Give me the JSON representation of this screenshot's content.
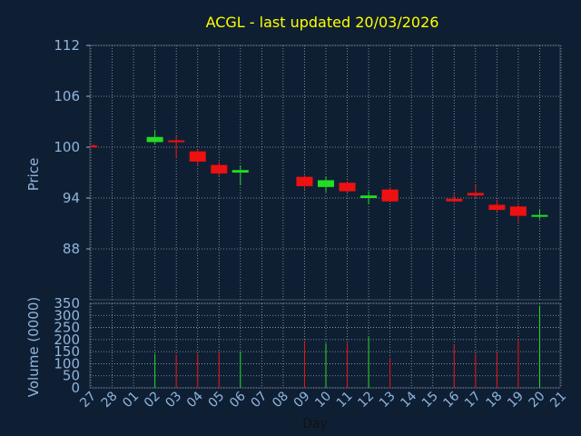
{
  "chart_data": {
    "type": "candlestick",
    "title": "ACGL - last updated 20/03/2026",
    "ylabel": "Price",
    "ylim": [
      82,
      112
    ],
    "yticks": [
      88,
      94,
      100,
      106,
      112
    ],
    "volume_ylabel": "Volume (0000)",
    "volume_ylim": [
      0,
      350
    ],
    "volume_yticks": [
      0,
      50,
      100,
      150,
      200,
      250,
      300,
      350
    ],
    "xlabel": "Day",
    "days": [
      "27",
      "28",
      "01",
      "02",
      "03",
      "04",
      "05",
      "06",
      "07",
      "08",
      "09",
      "10",
      "11",
      "12",
      "13",
      "14",
      "15",
      "16",
      "17",
      "18",
      "19",
      "20",
      "21"
    ],
    "candles": [
      {
        "day": "27",
        "open": 100.2,
        "close": 100.1,
        "high": 100.3,
        "low": 100.0,
        "volume": 0
      },
      {
        "day": "02",
        "open": 100.6,
        "close": 101.2,
        "high": 102.0,
        "low": 100.3,
        "volume": 140
      },
      {
        "day": "03",
        "open": 100.8,
        "close": 100.6,
        "high": 101.3,
        "low": 98.8,
        "volume": 135
      },
      {
        "day": "04",
        "open": 99.5,
        "close": 98.3,
        "high": 99.7,
        "low": 97.8,
        "volume": 140
      },
      {
        "day": "05",
        "open": 97.9,
        "close": 96.9,
        "high": 98.3,
        "low": 96.5,
        "volume": 150
      },
      {
        "day": "06",
        "open": 97.0,
        "close": 97.3,
        "high": 97.8,
        "low": 95.5,
        "volume": 150
      },
      {
        "day": "09",
        "open": 96.5,
        "close": 95.4,
        "high": 96.7,
        "low": 95.0,
        "volume": 195
      },
      {
        "day": "10",
        "open": 95.3,
        "close": 96.1,
        "high": 96.5,
        "low": 94.7,
        "volume": 185
      },
      {
        "day": "11",
        "open": 95.8,
        "close": 94.8,
        "high": 96.0,
        "low": 94.6,
        "volume": 185
      },
      {
        "day": "12",
        "open": 94.0,
        "close": 94.3,
        "high": 94.8,
        "low": 93.3,
        "volume": 210
      },
      {
        "day": "13",
        "open": 95.0,
        "close": 93.6,
        "high": 95.3,
        "low": 93.5,
        "volume": 125
      },
      {
        "day": "16",
        "open": 93.9,
        "close": 93.6,
        "high": 94.5,
        "low": 93.5,
        "volume": 180
      },
      {
        "day": "17",
        "open": 94.6,
        "close": 94.3,
        "high": 95.5,
        "low": 94.0,
        "volume": 140
      },
      {
        "day": "18",
        "open": 93.2,
        "close": 92.6,
        "high": 93.8,
        "low": 92.4,
        "volume": 145
      },
      {
        "day": "19",
        "open": 93.0,
        "close": 91.9,
        "high": 93.2,
        "low": 91.2,
        "volume": 200
      },
      {
        "day": "20",
        "open": 91.8,
        "close": 92.0,
        "high": 92.6,
        "low": 91.5,
        "volume": 340
      }
    ],
    "colors": {
      "background": "#0f1f33",
      "frame": "#3c4a5c",
      "grid": "#9aa4b0",
      "axis_text": "#8fb5dd",
      "title": "#ffff00",
      "up": "#22dd22",
      "down": "#ee1111"
    },
    "grid": true
  }
}
